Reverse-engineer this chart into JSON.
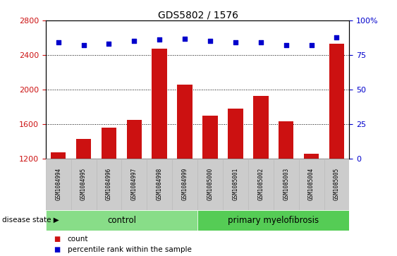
{
  "title": "GDS5802 / 1576",
  "samples": [
    "GSM1084994",
    "GSM1084995",
    "GSM1084996",
    "GSM1084997",
    "GSM1084998",
    "GSM1084999",
    "GSM1085000",
    "GSM1085001",
    "GSM1085002",
    "GSM1085003",
    "GSM1085004",
    "GSM1085005"
  ],
  "counts": [
    1270,
    1430,
    1560,
    1650,
    2470,
    2060,
    1700,
    1780,
    1930,
    1630,
    1255,
    2530
  ],
  "percentiles": [
    84,
    82,
    83,
    85,
    86,
    87,
    85,
    84,
    84,
    82,
    82,
    88
  ],
  "ylim_left": [
    1200,
    2800
  ],
  "ylim_right": [
    0,
    100
  ],
  "yticks_left": [
    1200,
    1600,
    2000,
    2400,
    2800
  ],
  "yticks_right": [
    0,
    25,
    50,
    75,
    100
  ],
  "bar_color": "#cc1111",
  "dot_color": "#0000cc",
  "control_color": "#88dd88",
  "myelofibrosis_color": "#55cc55",
  "group_labels": [
    "control",
    "primary myelofibrosis"
  ],
  "legend_count_label": "count",
  "legend_percentile_label": "percentile rank within the sample",
  "disease_state_label": "disease state",
  "tick_label_color_left": "#cc1111",
  "tick_label_color_right": "#0000cc",
  "sample_box_color": "#cccccc",
  "sample_box_edge": "#bbbbbb"
}
